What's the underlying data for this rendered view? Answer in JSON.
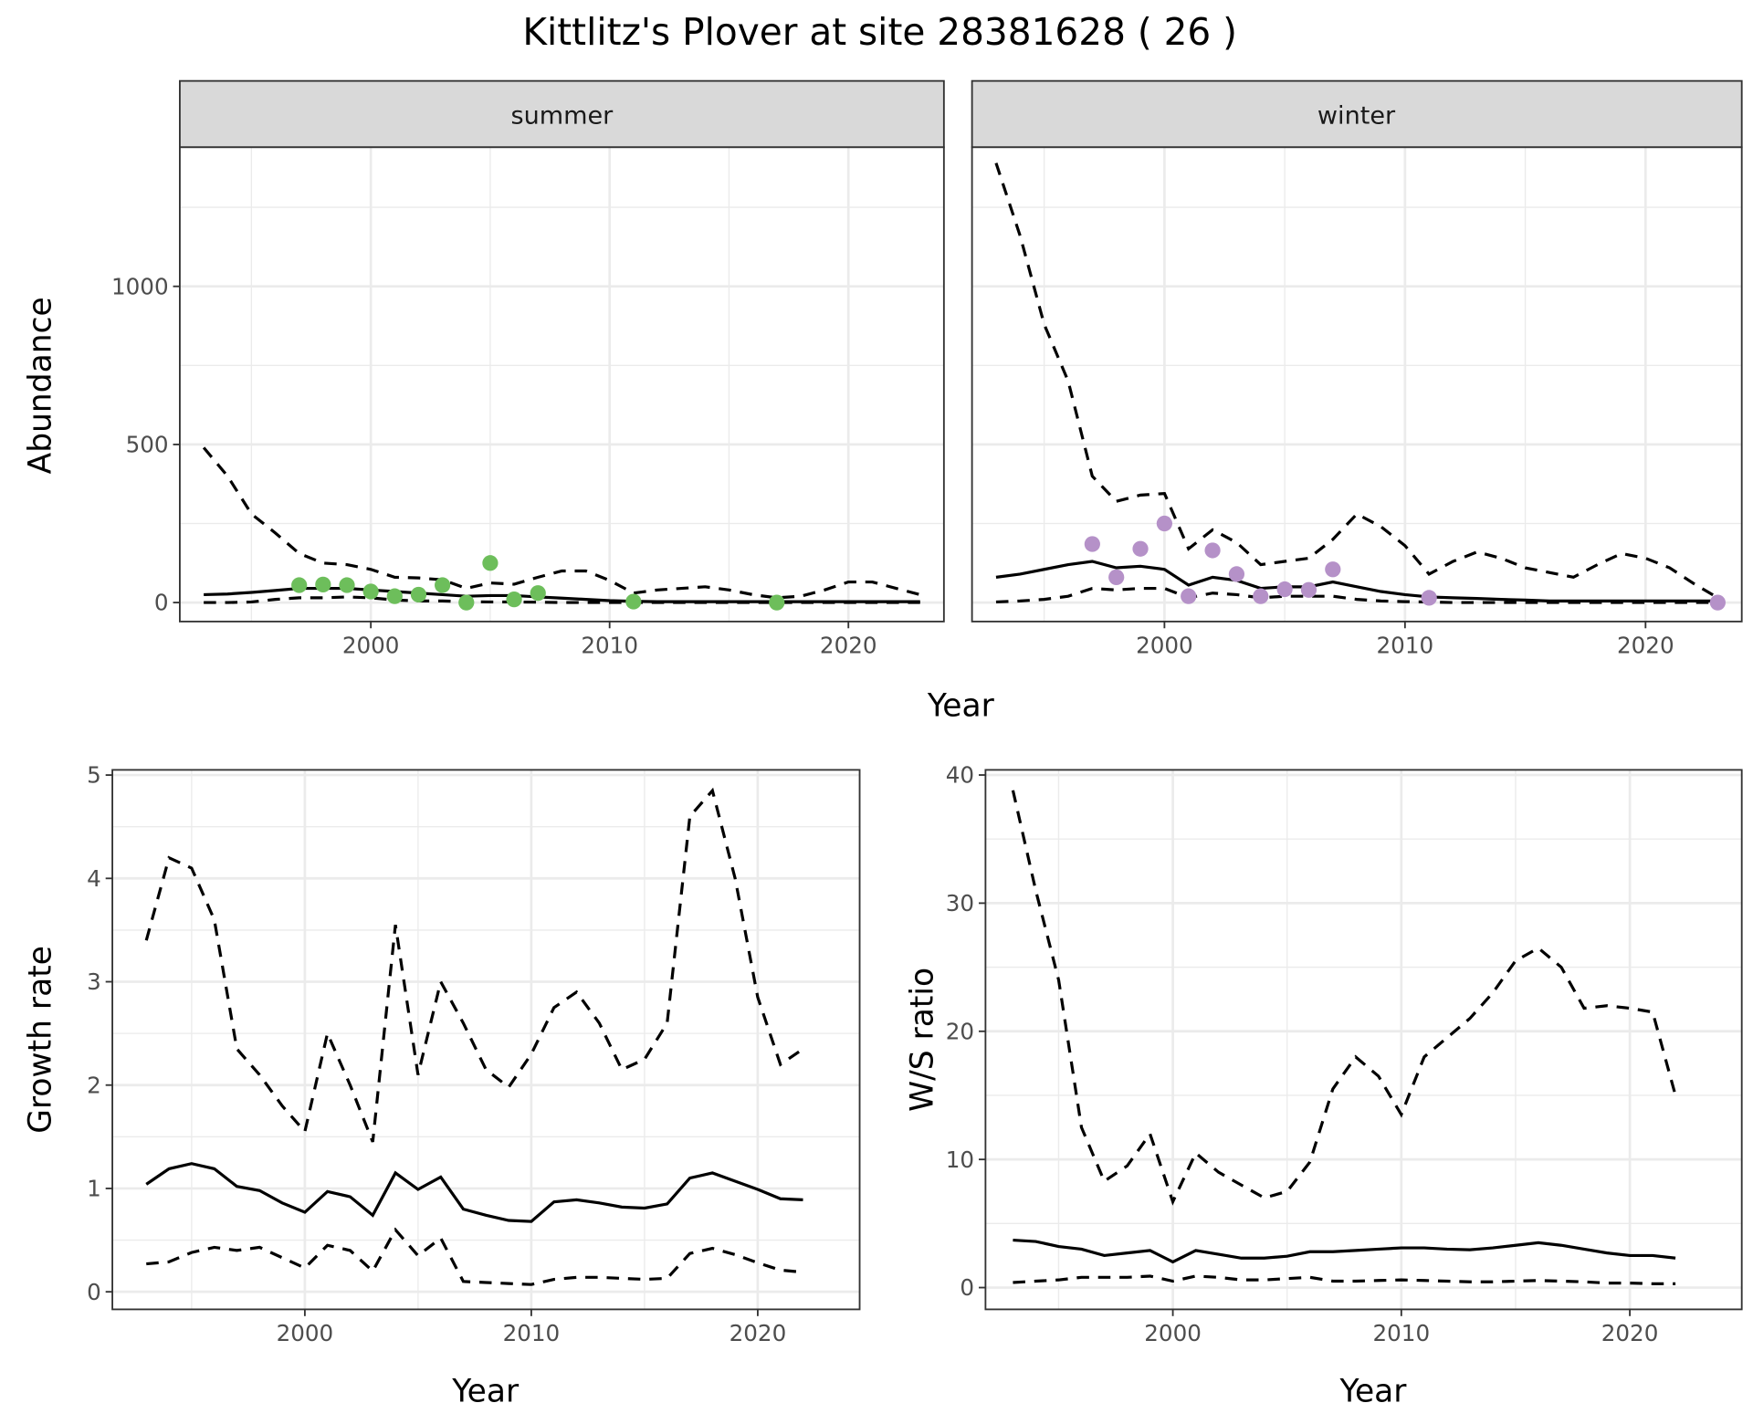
{
  "title": "Kittlitz's Plover at site 28381628 ( 26 )",
  "colors": {
    "summer": "#6DBE5B",
    "winter": "#B591C8",
    "line": "#000000",
    "strip_bg": "#D9D9D9"
  },
  "chart_data": [
    {
      "type": "line",
      "facet": "summer",
      "xlabel": "Year",
      "ylabel": "Abundance",
      "xlim": [
        1992,
        2024
      ],
      "ylim": [
        -60,
        1440
      ],
      "x_ticks": [
        2000,
        2010,
        2020
      ],
      "y_ticks": [
        0,
        500,
        1000
      ],
      "grid": true,
      "x": [
        1993,
        1994,
        1995,
        1996,
        1997,
        1998,
        1999,
        2000,
        2001,
        2002,
        2003,
        2004,
        2005,
        2006,
        2007,
        2008,
        2009,
        2010,
        2011,
        2012,
        2013,
        2014,
        2015,
        2016,
        2017,
        2018,
        2019,
        2020,
        2021,
        2022,
        2023
      ],
      "mean": [
        25,
        27,
        32,
        38,
        45,
        45,
        45,
        40,
        35,
        30,
        25,
        20,
        22,
        22,
        18,
        14,
        10,
        6,
        4,
        3,
        3,
        3,
        3,
        3,
        3,
        3,
        3,
        3,
        3,
        3,
        3
      ],
      "upper": [
        490,
        400,
        280,
        220,
        155,
        125,
        120,
        105,
        80,
        78,
        72,
        45,
        62,
        58,
        80,
        100,
        100,
        70,
        30,
        40,
        45,
        50,
        40,
        25,
        15,
        20,
        40,
        65,
        65,
        45,
        25
      ],
      "lower": [
        0,
        0,
        2,
        10,
        15,
        15,
        18,
        15,
        8,
        5,
        5,
        3,
        2,
        2,
        1,
        0,
        0,
        0,
        0,
        0,
        0,
        0,
        0,
        0,
        0,
        0,
        0,
        0,
        0,
        0,
        0
      ],
      "points": {
        "x": [
          1997,
          1998,
          1999,
          2000,
          2001,
          2002,
          2003,
          2004,
          2005,
          2006,
          2007,
          2011,
          2017
        ],
        "y": [
          55,
          57,
          55,
          35,
          20,
          25,
          55,
          0,
          125,
          10,
          30,
          3,
          0
        ]
      }
    },
    {
      "type": "line",
      "facet": "winter",
      "xlabel": "Year",
      "ylabel": "Abundance",
      "xlim": [
        1992,
        2024
      ],
      "ylim": [
        -60,
        1440
      ],
      "x_ticks": [
        2000,
        2010,
        2020
      ],
      "y_ticks": [
        0,
        500,
        1000
      ],
      "grid": true,
      "x": [
        1993,
        1994,
        1995,
        1996,
        1997,
        1998,
        1999,
        2000,
        2001,
        2002,
        2003,
        2004,
        2005,
        2006,
        2007,
        2008,
        2009,
        2010,
        2011,
        2012,
        2013,
        2014,
        2015,
        2016,
        2017,
        2018,
        2019,
        2020,
        2021,
        2022,
        2023
      ],
      "mean": [
        80,
        90,
        105,
        120,
        130,
        110,
        115,
        105,
        55,
        80,
        70,
        45,
        50,
        50,
        65,
        50,
        35,
        25,
        18,
        15,
        13,
        10,
        8,
        5,
        5,
        5,
        5,
        5,
        5,
        5,
        5
      ],
      "upper": [
        1390,
        1160,
        880,
        700,
        400,
        320,
        340,
        345,
        170,
        230,
        190,
        120,
        130,
        140,
        200,
        280,
        240,
        180,
        90,
        130,
        160,
        140,
        110,
        95,
        80,
        120,
        155,
        140,
        110,
        60,
        15
      ],
      "lower": [
        2,
        5,
        10,
        20,
        45,
        40,
        45,
        45,
        15,
        30,
        25,
        15,
        20,
        20,
        20,
        10,
        5,
        3,
        2,
        0,
        0,
        0,
        0,
        0,
        0,
        0,
        0,
        0,
        0,
        0,
        0
      ],
      "points": {
        "x": [
          1997,
          1998,
          1999,
          2000,
          2001,
          2002,
          2003,
          2004,
          2005,
          2006,
          2007,
          2011,
          2023
        ],
        "y": [
          185,
          80,
          170,
          250,
          20,
          165,
          90,
          20,
          42,
          40,
          105,
          15,
          0
        ]
      }
    },
    {
      "type": "line",
      "xlabel": "Year",
      "ylabel": "Growth rate",
      "xlim": [
        1991.5,
        2024.5
      ],
      "ylim": [
        -0.17,
        5.05
      ],
      "x_ticks": [
        2000,
        2010,
        2020
      ],
      "y_ticks": [
        0,
        1,
        2,
        3,
        4,
        5
      ],
      "grid": true,
      "x": [
        1993,
        1994,
        1995,
        1996,
        1997,
        1998,
        1999,
        2000,
        2001,
        2002,
        2003,
        2004,
        2005,
        2006,
        2007,
        2008,
        2009,
        2010,
        2011,
        2012,
        2013,
        2014,
        2015,
        2016,
        2017,
        2018,
        2019,
        2020,
        2021,
        2022
      ],
      "mean": [
        1.04,
        1.19,
        1.24,
        1.19,
        1.02,
        0.98,
        0.86,
        0.77,
        0.97,
        0.92,
        0.74,
        1.15,
        0.99,
        1.11,
        0.8,
        0.74,
        0.69,
        0.68,
        0.87,
        0.89,
        0.86,
        0.82,
        0.81,
        0.85,
        1.1,
        1.15,
        1.07,
        0.99,
        0.9,
        0.89
      ],
      "upper": [
        3.4,
        4.2,
        4.1,
        3.6,
        2.35,
        2.1,
        1.8,
        1.55,
        2.5,
        2.0,
        1.45,
        3.55,
        2.1,
        3.0,
        2.6,
        2.15,
        1.98,
        2.3,
        2.75,
        2.9,
        2.6,
        2.15,
        2.25,
        2.6,
        4.6,
        4.85,
        4.0,
        2.85,
        2.2,
        2.35
      ],
      "lower": [
        0.27,
        0.29,
        0.38,
        0.43,
        0.4,
        0.43,
        0.33,
        0.23,
        0.45,
        0.4,
        0.2,
        0.6,
        0.35,
        0.52,
        0.1,
        0.09,
        0.08,
        0.07,
        0.12,
        0.14,
        0.14,
        0.13,
        0.12,
        0.13,
        0.37,
        0.42,
        0.36,
        0.28,
        0.21,
        0.19
      ]
    },
    {
      "type": "line",
      "xlabel": "Year",
      "ylabel": "W/S ratio",
      "xlim": [
        1991.8,
        2024.9
      ],
      "ylim": [
        -1.7,
        40.4
      ],
      "x_ticks": [
        2000,
        2010,
        2020
      ],
      "y_ticks": [
        0,
        10,
        20,
        30,
        40
      ],
      "grid": true,
      "x": [
        1993,
        1994,
        1995,
        1996,
        1997,
        1998,
        1999,
        2000,
        2001,
        2002,
        2003,
        2004,
        2005,
        2006,
        2007,
        2008,
        2009,
        2010,
        2011,
        2012,
        2013,
        2014,
        2015,
        2016,
        2017,
        2018,
        2019,
        2020,
        2021,
        2022
      ],
      "mean": [
        3.7,
        3.6,
        3.2,
        3.0,
        2.5,
        2.7,
        2.9,
        2.0,
        2.9,
        2.6,
        2.3,
        2.3,
        2.45,
        2.8,
        2.8,
        2.9,
        3.0,
        3.1,
        3.1,
        3.0,
        2.95,
        3.1,
        3.3,
        3.5,
        3.3,
        3.0,
        2.7,
        2.5,
        2.5,
        2.3
      ],
      "upper": [
        38.8,
        31,
        24,
        12.5,
        8.3,
        9.5,
        12,
        6.7,
        10.5,
        9,
        8,
        7,
        7.5,
        9.8,
        15.5,
        18,
        16.5,
        13.5,
        18,
        19.5,
        21,
        23,
        25.5,
        26.5,
        25,
        21.8,
        22,
        21.8,
        21.5,
        15
      ],
      "lower": [
        0.4,
        0.5,
        0.6,
        0.8,
        0.8,
        0.8,
        0.9,
        0.5,
        0.9,
        0.8,
        0.6,
        0.6,
        0.7,
        0.8,
        0.5,
        0.5,
        0.55,
        0.6,
        0.55,
        0.5,
        0.45,
        0.45,
        0.5,
        0.55,
        0.5,
        0.45,
        0.35,
        0.35,
        0.3,
        0.3
      ]
    }
  ]
}
